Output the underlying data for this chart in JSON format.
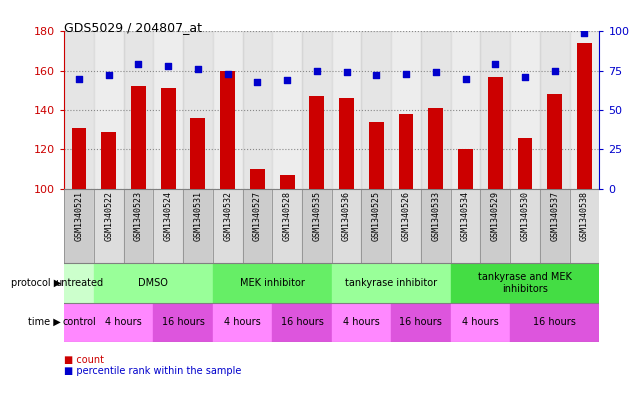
{
  "title": "GDS5029 / 204807_at",
  "samples": [
    "GSM1340521",
    "GSM1340522",
    "GSM1340523",
    "GSM1340524",
    "GSM1340531",
    "GSM1340532",
    "GSM1340527",
    "GSM1340528",
    "GSM1340535",
    "GSM1340536",
    "GSM1340525",
    "GSM1340526",
    "GSM1340533",
    "GSM1340534",
    "GSM1340529",
    "GSM1340530",
    "GSM1340537",
    "GSM1340538"
  ],
  "counts": [
    131,
    129,
    152,
    151,
    136,
    160,
    110,
    107,
    147,
    146,
    134,
    138,
    141,
    120,
    157,
    126,
    148,
    174
  ],
  "percentiles": [
    70,
    72,
    79,
    78,
    76,
    73,
    68,
    69,
    75,
    74,
    72,
    73,
    74,
    70,
    79,
    71,
    75,
    99
  ],
  "ylim_left": [
    100,
    180
  ],
  "ylim_right": [
    0,
    100
  ],
  "yticks_left": [
    100,
    120,
    140,
    160,
    180
  ],
  "yticks_right": [
    0,
    25,
    50,
    75,
    100
  ],
  "bar_color": "#cc0000",
  "dot_color": "#0000cc",
  "protocol_groups": [
    {
      "label": "untreated",
      "start": 0,
      "end": 1,
      "color": "#ccffcc"
    },
    {
      "label": "DMSO",
      "start": 1,
      "end": 5,
      "color": "#99ff99"
    },
    {
      "label": "MEK inhibitor",
      "start": 5,
      "end": 9,
      "color": "#66ee66"
    },
    {
      "label": "tankyrase inhibitor",
      "start": 9,
      "end": 13,
      "color": "#99ff99"
    },
    {
      "label": "tankyrase and MEK\ninhibitors",
      "start": 13,
      "end": 18,
      "color": "#44dd44"
    }
  ],
  "time_groups": [
    {
      "label": "control",
      "start": 0,
      "end": 1,
      "color": "#ff88ff"
    },
    {
      "label": "4 hours",
      "start": 1,
      "end": 3,
      "color": "#ff88ff"
    },
    {
      "label": "16 hours",
      "start": 3,
      "end": 5,
      "color": "#dd55dd"
    },
    {
      "label": "4 hours",
      "start": 5,
      "end": 7,
      "color": "#ff88ff"
    },
    {
      "label": "16 hours",
      "start": 7,
      "end": 9,
      "color": "#dd55dd"
    },
    {
      "label": "4 hours",
      "start": 9,
      "end": 11,
      "color": "#ff88ff"
    },
    {
      "label": "16 hours",
      "start": 11,
      "end": 13,
      "color": "#dd55dd"
    },
    {
      "label": "4 hours",
      "start": 13,
      "end": 15,
      "color": "#ff88ff"
    },
    {
      "label": "16 hours",
      "start": 15,
      "end": 18,
      "color": "#dd55dd"
    }
  ],
  "left_axis_color": "#cc0000",
  "right_axis_color": "#0000cc",
  "bg_color": "#ffffff",
  "sample_bg_even": "#cccccc",
  "sample_bg_odd": "#dddddd",
  "grid_color": "#888888",
  "label_color": "#000000"
}
